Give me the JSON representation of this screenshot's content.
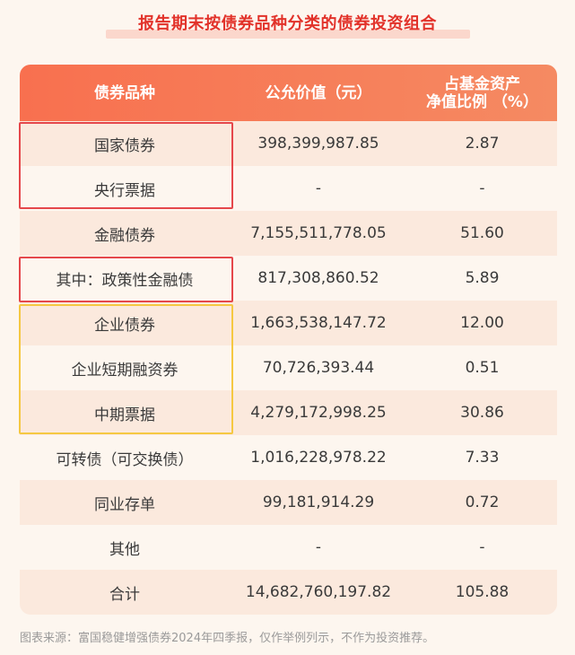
{
  "title": "报告期末按债券品种分类的债券投资组合",
  "headers": {
    "col1": "债券品种",
    "col2": "公允价值（元）",
    "col3_line1": "占基金资产",
    "col3_line2": "净值比例 （%）"
  },
  "rows": [
    {
      "name": "国家债券",
      "value": "398,399,987.85",
      "ratio": "2.87"
    },
    {
      "name": "央行票据",
      "value": "-",
      "ratio": "-"
    },
    {
      "name": "金融债券",
      "value": "7,155,511,778.05",
      "ratio": "51.60"
    },
    {
      "name": "其中：政策性金融债",
      "value": "817,308,860.52",
      "ratio": "5.89"
    },
    {
      "name": "企业债券",
      "value": "1,663,538,147.72",
      "ratio": "12.00"
    },
    {
      "name": "企业短期融资券",
      "value": "70,726,393.44",
      "ratio": "0.51"
    },
    {
      "name": "中期票据",
      "value": "4,279,172,998.25",
      "ratio": "30.86"
    },
    {
      "name": "可转债（可交换债）",
      "value": "1,016,228,978.22",
      "ratio": "7.33"
    },
    {
      "name": "同业存单",
      "value": "99,181,914.29",
      "ratio": "0.72"
    },
    {
      "name": "其他",
      "value": "-",
      "ratio": "-"
    },
    {
      "name": "合计",
      "value": "14,682,760,197.82",
      "ratio": "105.88"
    }
  ],
  "footnote": "图表来源：富国稳健增强债券2024年四季报，仅作举例列示，不作为投资推荐。",
  "colors": {
    "header_bg": "#f8704f",
    "title": "#e2322a",
    "row_alt": "#fbe9dd",
    "highlight_red": "#e5474b",
    "highlight_yellow": "#f5c842"
  }
}
